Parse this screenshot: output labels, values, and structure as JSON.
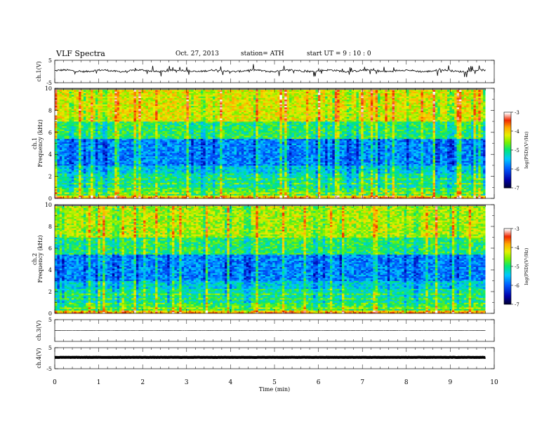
{
  "header": {
    "title": "VLF  Spectra",
    "date": "Oct. 27, 2013",
    "station": "station= ATH",
    "start": "start  UT  =   9  : 10 : 0"
  },
  "chart_data": {
    "type": "heatmap",
    "xlabel": "Time  (min)",
    "xlim": [
      0,
      10
    ],
    "xticks": [
      "0",
      "1",
      "2",
      "3",
      "4",
      "5",
      "6",
      "7",
      "8",
      "9",
      "10"
    ],
    "data_end_min": 9.8,
    "panels": [
      {
        "id": "ch1-wave",
        "type": "line",
        "ylabel": "ch.1(V)",
        "ylim": [
          -5,
          5
        ],
        "yticks": [
          "5",
          "-5"
        ],
        "baseline": 0.3,
        "spike_amplitude": 2.5
      },
      {
        "id": "ch1-spec",
        "type": "heatmap",
        "ylabel": [
          "ch.1",
          "Frequency  (kHz)"
        ],
        "ylim": [
          0,
          10
        ],
        "yticks": [
          "0",
          "2",
          "4",
          "6",
          "8",
          "10"
        ],
        "colorbar": {
          "label": "log(PSD)(V²/Hz)",
          "range": [
            -7,
            -3
          ],
          "ticks": [
            "-3",
            "-4",
            "-5",
            "-6",
            "-7"
          ]
        }
      },
      {
        "id": "ch2-spec",
        "type": "heatmap",
        "ylabel": [
          "ch.2",
          "Frequency  (kHz)"
        ],
        "ylim": [
          0,
          10
        ],
        "yticks": [
          "0",
          "2",
          "4",
          "6",
          "8",
          "10"
        ],
        "colorbar": {
          "label": "log(PSD)(V²/Hz)",
          "range": [
            -7,
            -3
          ],
          "ticks": [
            "-3",
            "-4",
            "-5",
            "-6",
            "-7"
          ]
        }
      },
      {
        "id": "ch3-wave",
        "type": "line",
        "ylabel": "ch.3(V)",
        "ylim": [
          -5,
          5
        ],
        "yticks": [
          "5"
        ],
        "baseline": 0.0
      },
      {
        "id": "ch4-wave",
        "type": "line",
        "ylabel": "ch.4(V)",
        "ylim": [
          -5,
          5
        ],
        "yticks": [
          "5",
          "-5"
        ],
        "baseline": 0.4,
        "thick": true
      }
    ]
  }
}
